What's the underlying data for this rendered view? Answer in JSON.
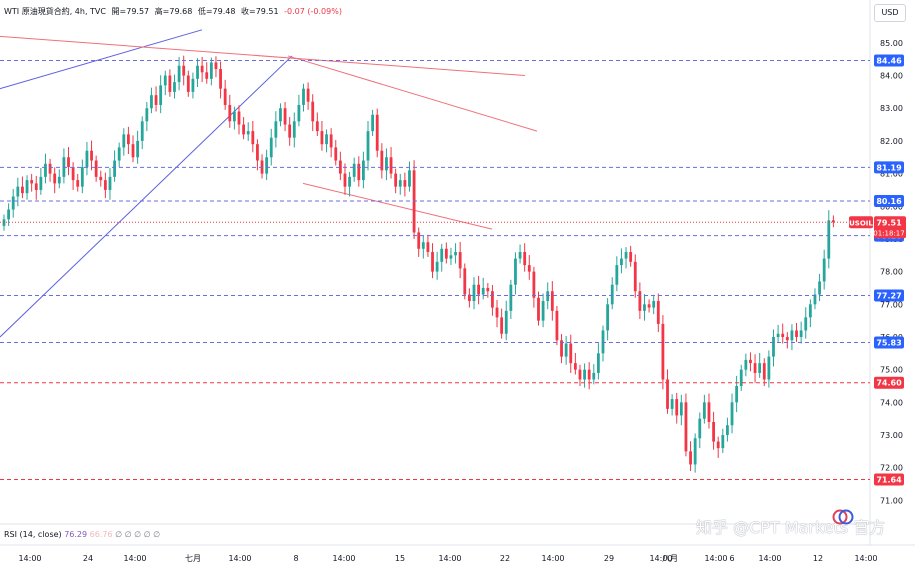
{
  "legend": {
    "title": "WTI 原油現貨合約, 4h, TVC",
    "open": "開=79.57",
    "high": "高=79.68",
    "low": "低=79.48",
    "close": "收=79.51",
    "change": "-0.07 (-0.09%)"
  },
  "currency_button": "USD",
  "rsi": {
    "label": "RSI (14, close)",
    "value": "76.29",
    "value2": "66.76",
    "extras": "∅ ∅ ∅ ∅ ∅"
  },
  "watermark": "知乎 @CPT Markets 官方",
  "colors": {
    "up": "#26a69a",
    "down": "#f23645",
    "channel_blue": "#5b5fe0",
    "channel_red": "#f0707b",
    "level_blue": "#6a6dde",
    "level_red": "#f23645",
    "label_blue": "#2962ff",
    "label_red": "#f23645"
  },
  "chart_data": {
    "type": "candlestick",
    "symbol": "USOIL",
    "interval": "4h",
    "ylim": [
      70.4,
      85.7
    ],
    "y_ticks": [
      "85.00",
      "84.00",
      "83.00",
      "82.00",
      "81.00",
      "80.00",
      "79.00",
      "78.00",
      "77.00",
      "76.00",
      "75.00",
      "74.00",
      "73.00",
      "72.00",
      "71.00"
    ],
    "x_ticks": [
      "14:00",
      "24",
      "14:00",
      "七月",
      "14:00",
      "8",
      "14:00",
      "15",
      "14:00",
      "22",
      "14:00",
      "29",
      "14:00",
      "八月",
      "14:00",
      "6",
      "14:00",
      "12",
      "14:00"
    ],
    "price_levels": [
      {
        "value": 84.46,
        "label": "84.46",
        "color": "blue"
      },
      {
        "value": 81.19,
        "label": "81.19",
        "color": "blue"
      },
      {
        "value": 80.16,
        "label": "80.16",
        "color": "blue"
      },
      {
        "value": 79.1,
        "label": "79.10",
        "color": "blue"
      },
      {
        "value": 77.27,
        "label": "77.27",
        "color": "blue"
      },
      {
        "value": 75.83,
        "label": "75.83",
        "color": "blue"
      },
      {
        "value": 74.6,
        "label": "74.60",
        "color": "red"
      },
      {
        "value": 71.64,
        "label": "71.64",
        "color": "red"
      }
    ],
    "last_price": {
      "symbol": "USOIL",
      "value": 79.51,
      "label": "79.51",
      "countdown": "01:18:17"
    },
    "candles_close": [
      79.6,
      79.9,
      80.3,
      80.6,
      80.4,
      80.8,
      80.7,
      80.5,
      80.9,
      81.3,
      81.0,
      80.7,
      80.9,
      81.5,
      81.2,
      80.8,
      80.6,
      81.2,
      81.7,
      81.4,
      80.9,
      80.8,
      80.5,
      80.9,
      81.4,
      81.8,
      82.2,
      81.9,
      81.5,
      82.0,
      82.6,
      83.0,
      83.4,
      83.1,
      83.7,
      84.0,
      83.5,
      83.8,
      84.3,
      84.0,
      83.5,
      83.9,
      84.3,
      84.1,
      83.9,
      84.4,
      84.2,
      83.6,
      83.1,
      82.6,
      82.9,
      82.5,
      82.2,
      82.3,
      81.9,
      81.4,
      81.0,
      81.5,
      82.1,
      82.6,
      83.0,
      82.5,
      82.1,
      82.6,
      83.1,
      83.6,
      83.2,
      82.6,
      82.3,
      81.9,
      82.2,
      81.8,
      81.4,
      81.0,
      80.6,
      80.9,
      81.3,
      80.8,
      81.4,
      82.3,
      82.8,
      81.7,
      81.1,
      81.5,
      81.0,
      80.6,
      80.8,
      80.6,
      81.1,
      79.2,
      78.7,
      78.9,
      78.6,
      78.0,
      78.3,
      78.7,
      78.4,
      78.5,
      78.6,
      78.1,
      77.3,
      77.1,
      77.6,
      77.3,
      77.5,
      77.4,
      76.9,
      76.6,
      76.1,
      76.8,
      77.6,
      78.4,
      78.6,
      78.2,
      78.0,
      77.2,
      76.5,
      77.1,
      77.4,
      76.8,
      75.9,
      75.4,
      75.8,
      75.2,
      75.0,
      74.7,
      75.0,
      74.7,
      74.9,
      75.5,
      76.2,
      77.0,
      77.6,
      78.2,
      78.4,
      78.6,
      78.3,
      77.4,
      76.8,
      77.0,
      76.9,
      77.1,
      76.4,
      74.7,
      73.8,
      74.1,
      73.6,
      74.0,
      72.5,
      72.1,
      72.9,
      73.5,
      74.0,
      73.4,
      72.8,
      72.6,
      73.0,
      73.3,
      74.0,
      74.5,
      75.0,
      75.3,
      75.2,
      74.9,
      75.2,
      74.7,
      75.4,
      76.0,
      76.1,
      76.0,
      75.9,
      76.2,
      76.0,
      76.2,
      76.6,
      77.0,
      77.3,
      77.7,
      78.4,
      79.57,
      79.51
    ]
  }
}
